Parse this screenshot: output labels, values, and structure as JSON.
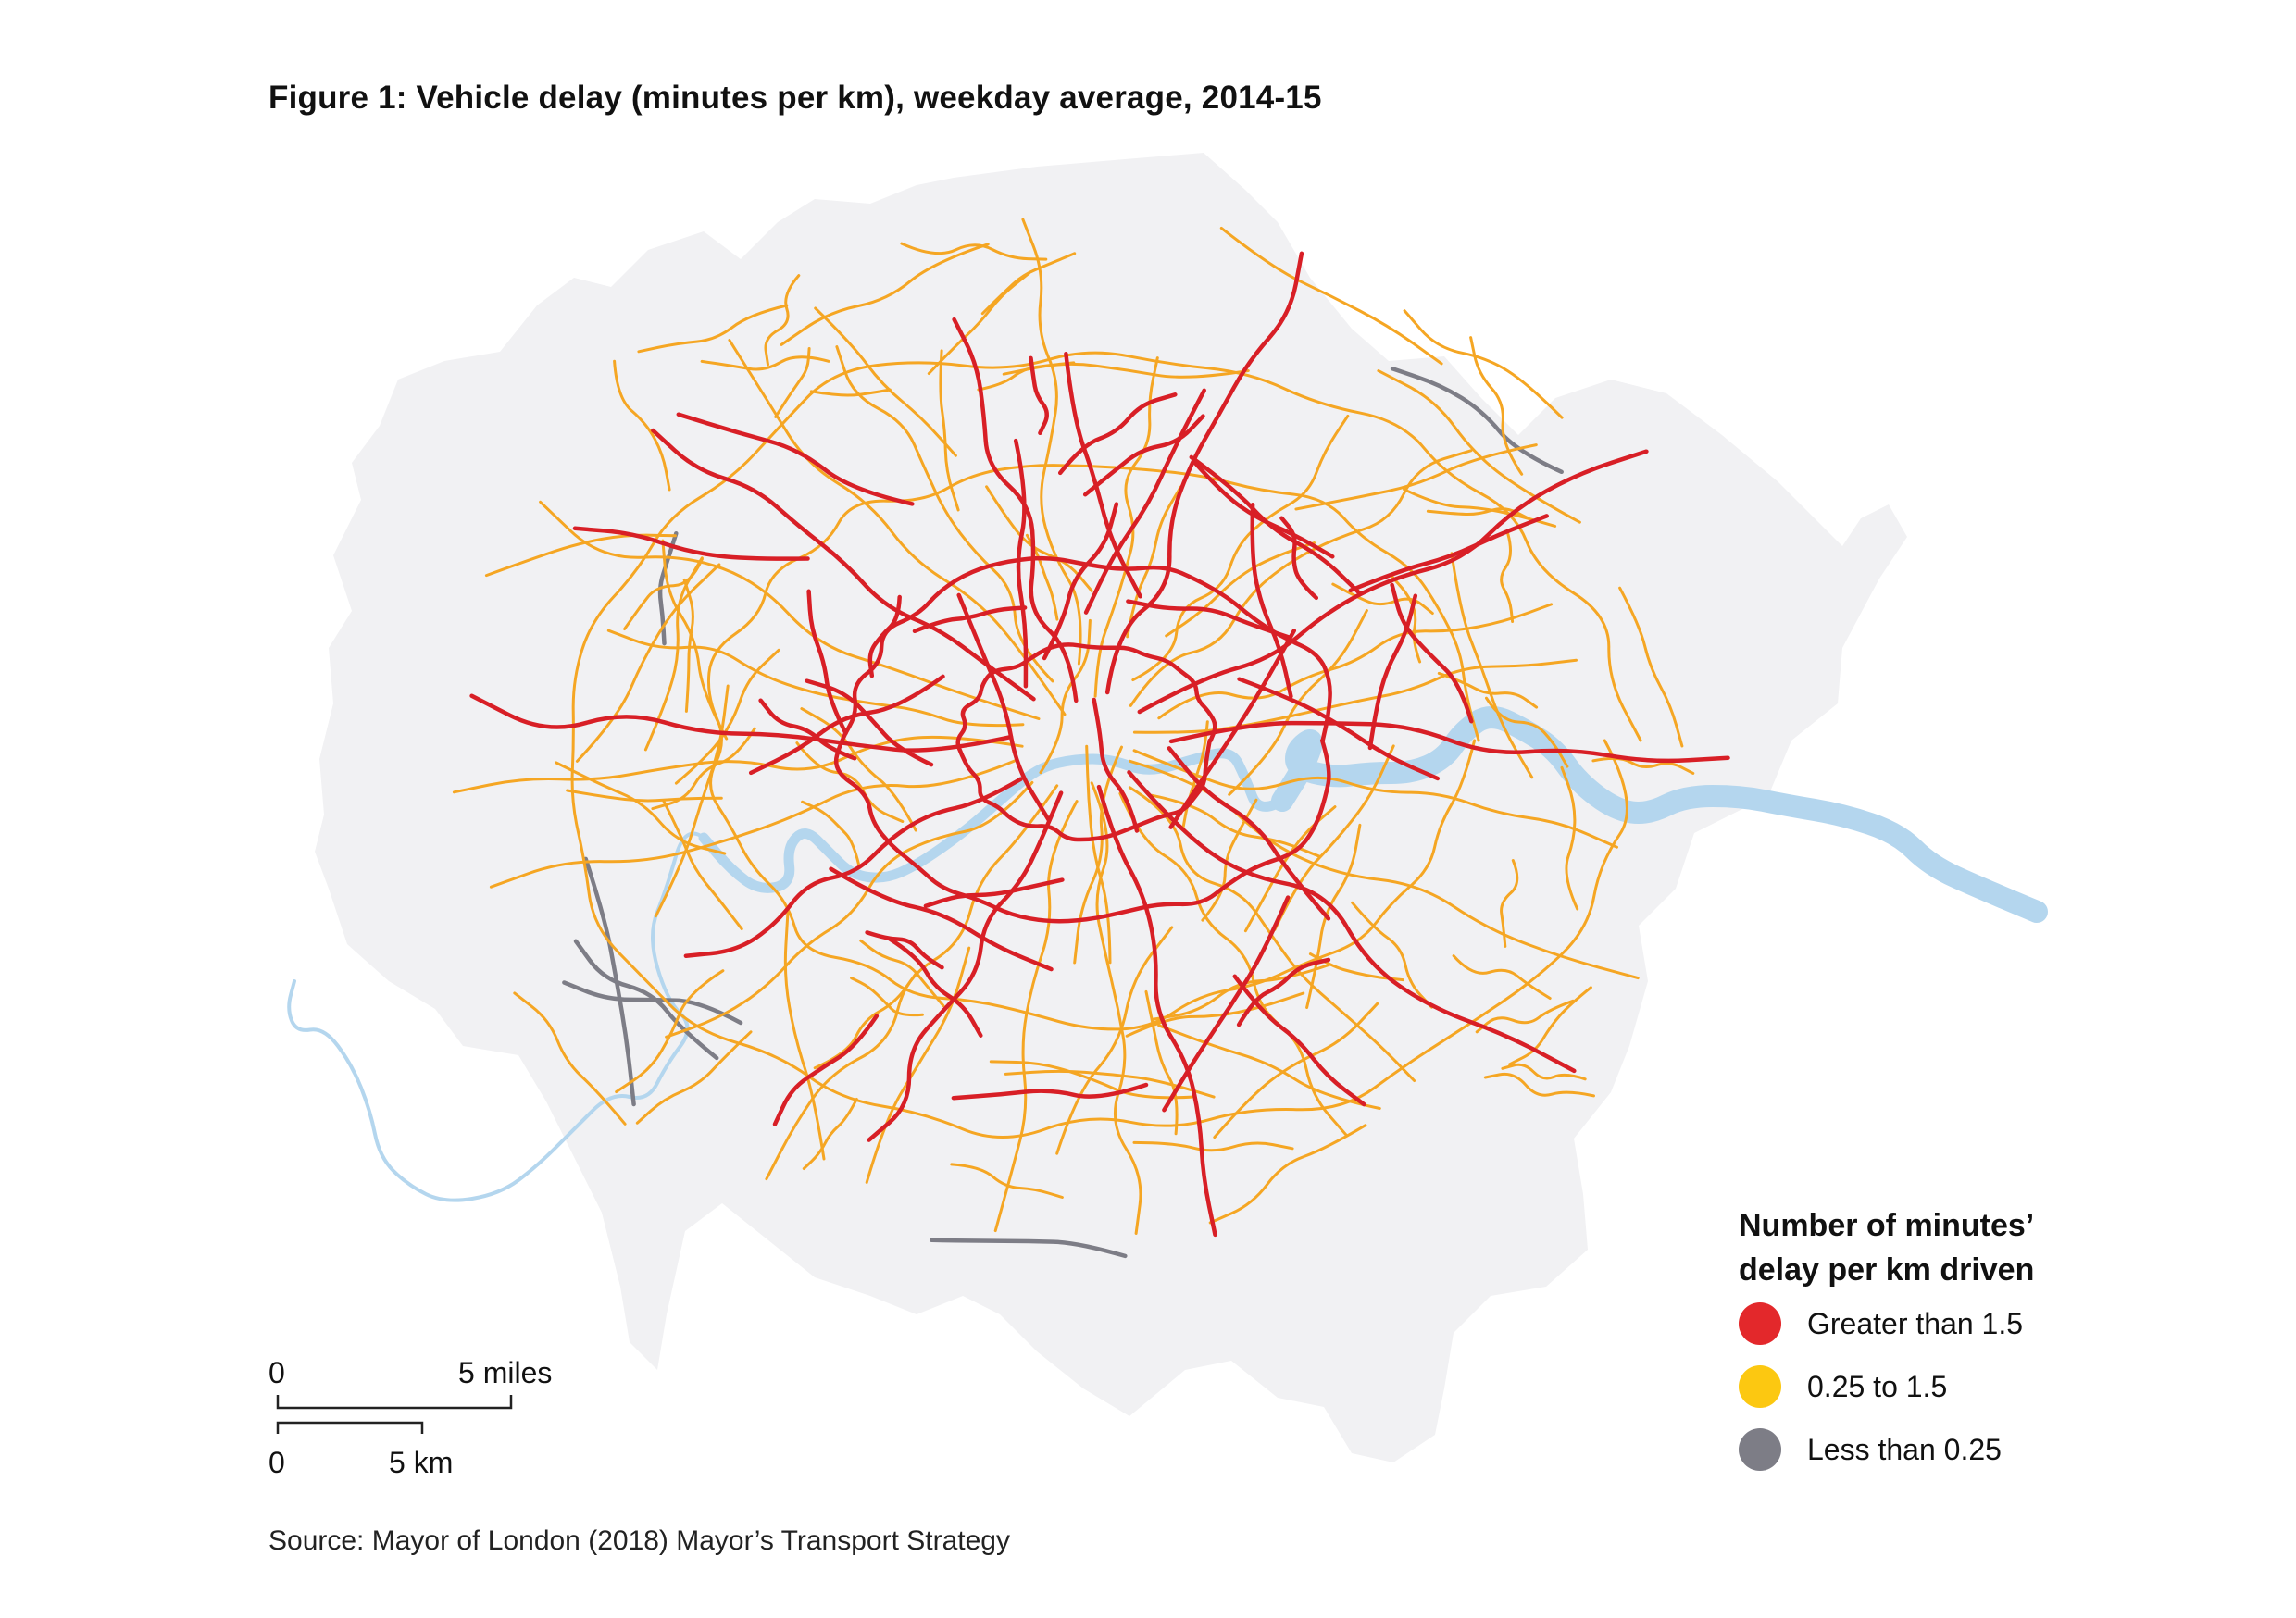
{
  "title": "Figure 1: Vehicle delay (minutes per km), weekday average, 2014-15",
  "legend": {
    "title_line1": "Number of minutes’",
    "title_line2": "delay per km driven",
    "items": [
      {
        "label": "Greater than 1.5",
        "color": "#e3282b"
      },
      {
        "label": "0.25 to 1.5",
        "color": "#fcc811"
      },
      {
        "label": "Less than 0.25",
        "color": "#7d7d86"
      }
    ]
  },
  "scale_bar": {
    "miles_zero": "0",
    "miles_label": "5 miles",
    "km_zero": "0",
    "km_label": "5 km"
  },
  "source": "Source: Mayor of London (2018) Mayor’s Transport Strategy",
  "colors": {
    "land": "#f1f1f3",
    "river": "#b4d6ee",
    "road_high": "#d81f26",
    "road_mid": "#f5a623",
    "road_low": "#7d7d86"
  }
}
